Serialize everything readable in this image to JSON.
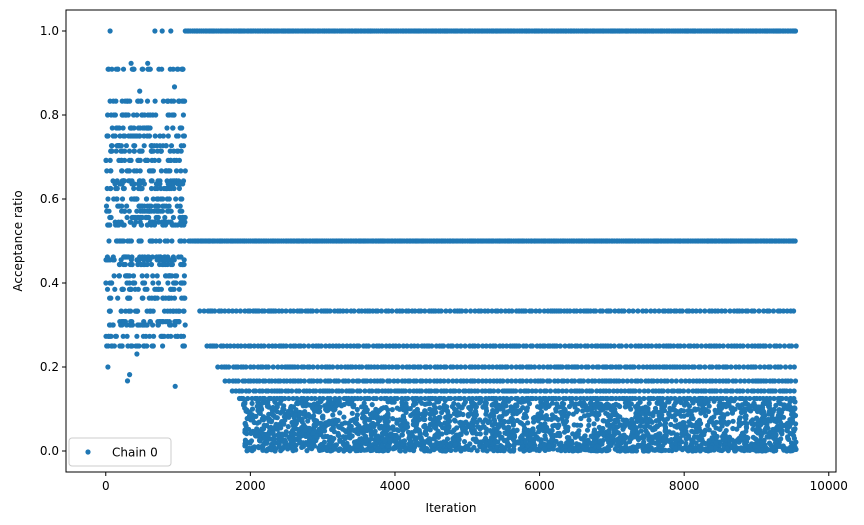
{
  "chart_data": {
    "type": "scatter",
    "title": "",
    "xlabel": "Iteration",
    "ylabel": "Acceptance ratio",
    "xlim": [
      -550,
      10100
    ],
    "ylim": [
      -0.05,
      1.05
    ],
    "xticks": [
      0,
      2000,
      4000,
      6000,
      8000,
      10000
    ],
    "yticks": [
      0.0,
      0.2,
      0.4,
      0.6,
      0.8,
      1.0
    ],
    "xtick_labels": [
      "0",
      "2000",
      "4000",
      "6000",
      "8000",
      "10000"
    ],
    "ytick_labels": [
      "0.0",
      "0.2",
      "0.4",
      "0.6",
      "0.8",
      "1.0"
    ],
    "grid": false,
    "legend_position": "lower-left",
    "marker_color": "#1f77b4",
    "series": [
      {
        "name": "Chain 0",
        "bands": [
          {
            "y": 1.0,
            "x_range": [
              1100,
              9550
            ],
            "density": "dense"
          },
          {
            "y": 0.5,
            "x_range": [
              1150,
              9550
            ],
            "density": "dense"
          },
          {
            "y": 0.3333,
            "x_range": [
              1300,
              9550
            ],
            "density": "medium"
          },
          {
            "y": 0.25,
            "x_range": [
              1400,
              9550
            ],
            "density": "medium"
          },
          {
            "y": 0.2,
            "x_range": [
              1550,
              9550
            ],
            "density": "medium"
          },
          {
            "y": 0.1667,
            "x_range": [
              1650,
              9550
            ],
            "density": "medium"
          },
          {
            "y": 0.1429,
            "x_range": [
              1750,
              9550
            ],
            "density": "medium"
          },
          {
            "y": 0.125,
            "x_range": [
              1850,
              9550
            ],
            "density": "medium"
          }
        ],
        "cloud": {
          "x_range": [
            1900,
            9550
          ],
          "y_range": [
            0.0,
            0.12
          ],
          "approx_points": 2600
        },
        "early_phase": {
          "x_range": [
            0,
            1100
          ],
          "levels": [
            0.909,
            0.833,
            0.8,
            0.769,
            0.75,
            0.727,
            0.714,
            0.692,
            0.667,
            0.643,
            0.636,
            0.625,
            0.6,
            0.583,
            0.571,
            0.556,
            0.545,
            0.538,
            0.5,
            0.462,
            0.455,
            0.444,
            0.417,
            0.4,
            0.385,
            0.364,
            0.333,
            0.308,
            0.3,
            0.273,
            0.25
          ],
          "approx_points_per_level": 26
        },
        "outliers": [
          {
            "x": 60,
            "y": 1.0
          },
          {
            "x": 680,
            "y": 1.0
          },
          {
            "x": 780,
            "y": 1.0
          },
          {
            "x": 900,
            "y": 1.0
          },
          {
            "x": 30,
            "y": 0.2
          },
          {
            "x": 300,
            "y": 0.167
          },
          {
            "x": 330,
            "y": 0.182
          },
          {
            "x": 960,
            "y": 0.154
          },
          {
            "x": 120,
            "y": 0.25
          },
          {
            "x": 430,
            "y": 0.231
          },
          {
            "x": 950,
            "y": 0.867
          },
          {
            "x": 350,
            "y": 0.923
          },
          {
            "x": 580,
            "y": 0.923
          },
          {
            "x": 470,
            "y": 0.857
          },
          {
            "x": 1050,
            "y": 0.909
          },
          {
            "x": 5600,
            "y": 0.0
          },
          {
            "x": 9420,
            "y": 0.0
          },
          {
            "x": 4700,
            "y": 0.0
          }
        ]
      }
    ]
  }
}
